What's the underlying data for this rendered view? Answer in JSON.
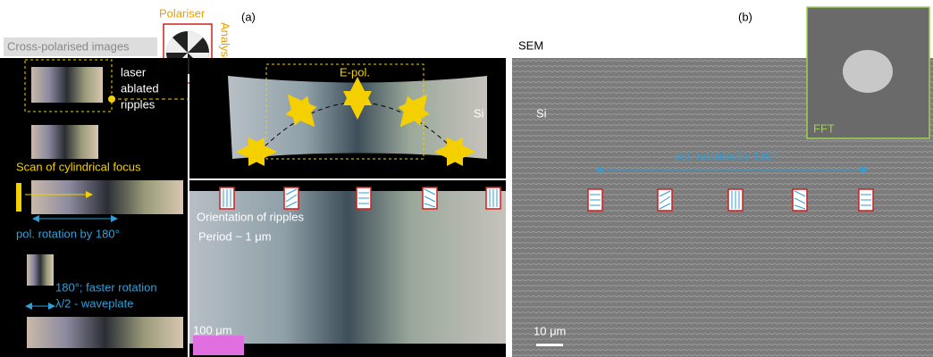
{
  "panel_a": {
    "label": "(a)",
    "polariser": "Polariser",
    "analyser": "Analyser",
    "cross_polarised_title": "Cross-polarised images",
    "laser_ablated_ripples": [
      "laser",
      "ablated",
      "ripples"
    ],
    "e_pol": "E-pol.",
    "si": "Si",
    "scan_of_cylindrical_focus": "Scan of cylindrical focus",
    "pol_rotation": "pol. rotation by 180°",
    "faster_rotation": "180°; faster rotation",
    "waveplate": "λ/2 - waveplate",
    "orientation_of_ripples": "Orientation of ripples",
    "period": "Period ~ 1 μm",
    "scale_bar": "100 μm"
  },
  "panel_b": {
    "label": "(b)",
    "sem": "SEM",
    "si": "Si",
    "fft": "FFT",
    "pol_rotation": "pol. rotation by 180°",
    "scale_bar": "10 μm"
  }
}
